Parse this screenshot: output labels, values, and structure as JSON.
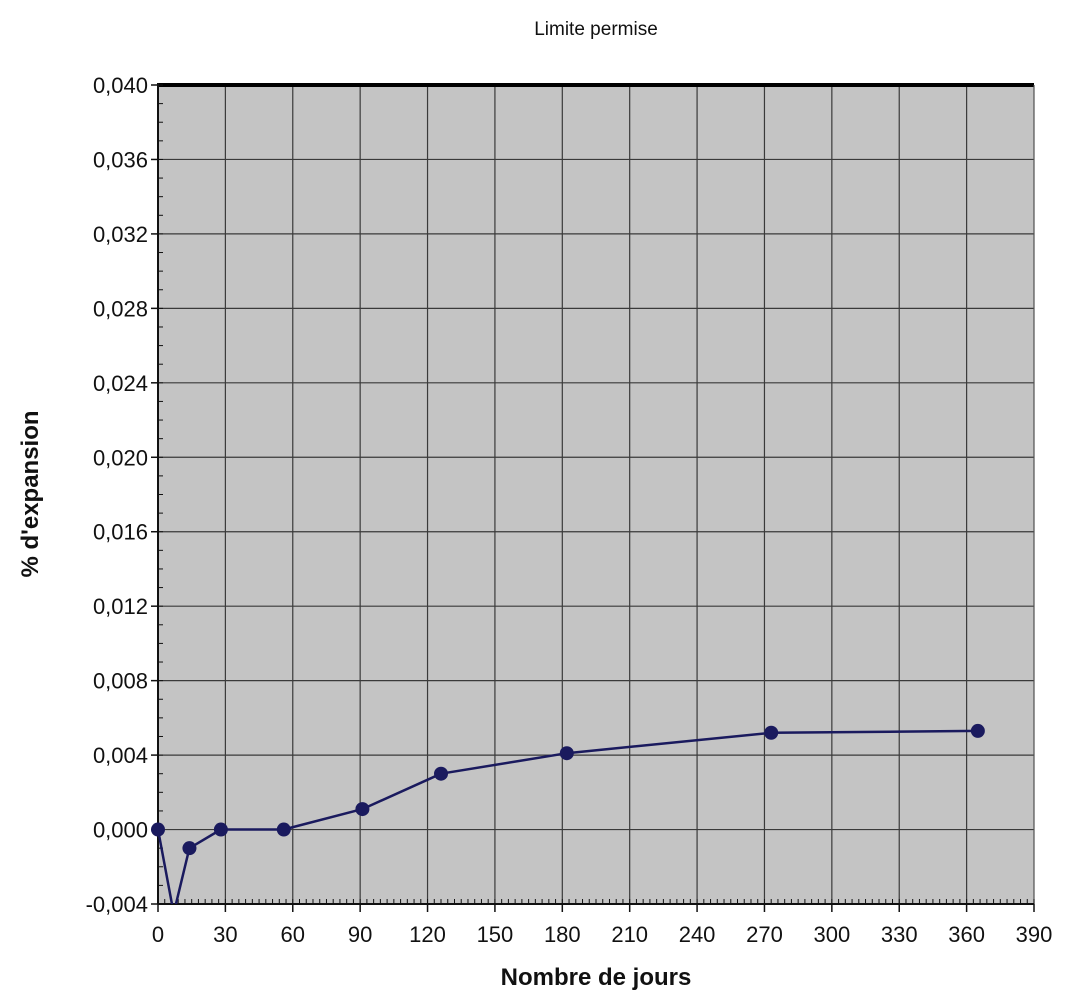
{
  "chart_data": {
    "type": "line",
    "title": "Limite permise",
    "xlabel": "Nombre de jours",
    "ylabel": "% d'expansion",
    "xlim": [
      0,
      390
    ],
    "ylim": [
      -0.004,
      0.04
    ],
    "x_ticks": [
      0,
      30,
      60,
      90,
      120,
      150,
      180,
      210,
      240,
      270,
      300,
      330,
      360,
      390
    ],
    "x_tick_labels": [
      "0",
      "30",
      "60",
      "90",
      "120",
      "150",
      "180",
      "210",
      "240",
      "270",
      "300",
      "330",
      "360",
      "390"
    ],
    "y_ticks": [
      -0.004,
      0,
      0.004,
      0.008,
      0.012,
      0.016,
      0.02,
      0.024,
      0.028,
      0.032,
      0.036,
      0.04
    ],
    "y_tick_labels": [
      "-0,004",
      "0,000",
      "0,004",
      "0,008",
      "0,012",
      "0,016",
      "0,020",
      "0,024",
      "0,028",
      "0,032",
      "0,036",
      "0,040"
    ],
    "limit_line": 0.04,
    "grid": true,
    "series": [
      {
        "x": [
          0,
          7,
          14,
          28,
          56,
          91,
          126,
          182,
          273,
          365
        ],
        "y": [
          0.0,
          -0.0045,
          -0.001,
          0.0,
          0.0,
          0.0011,
          0.003,
          0.0041,
          0.0052,
          0.0053
        ],
        "marker_shown": [
          true,
          false,
          true,
          true,
          true,
          true,
          true,
          true,
          true,
          true
        ]
      }
    ],
    "colors": {
      "series": "#1a1a5e",
      "plot_background": "#c4c4c4",
      "grid": "#3a3a3a",
      "limit_line": "#000000"
    }
  }
}
